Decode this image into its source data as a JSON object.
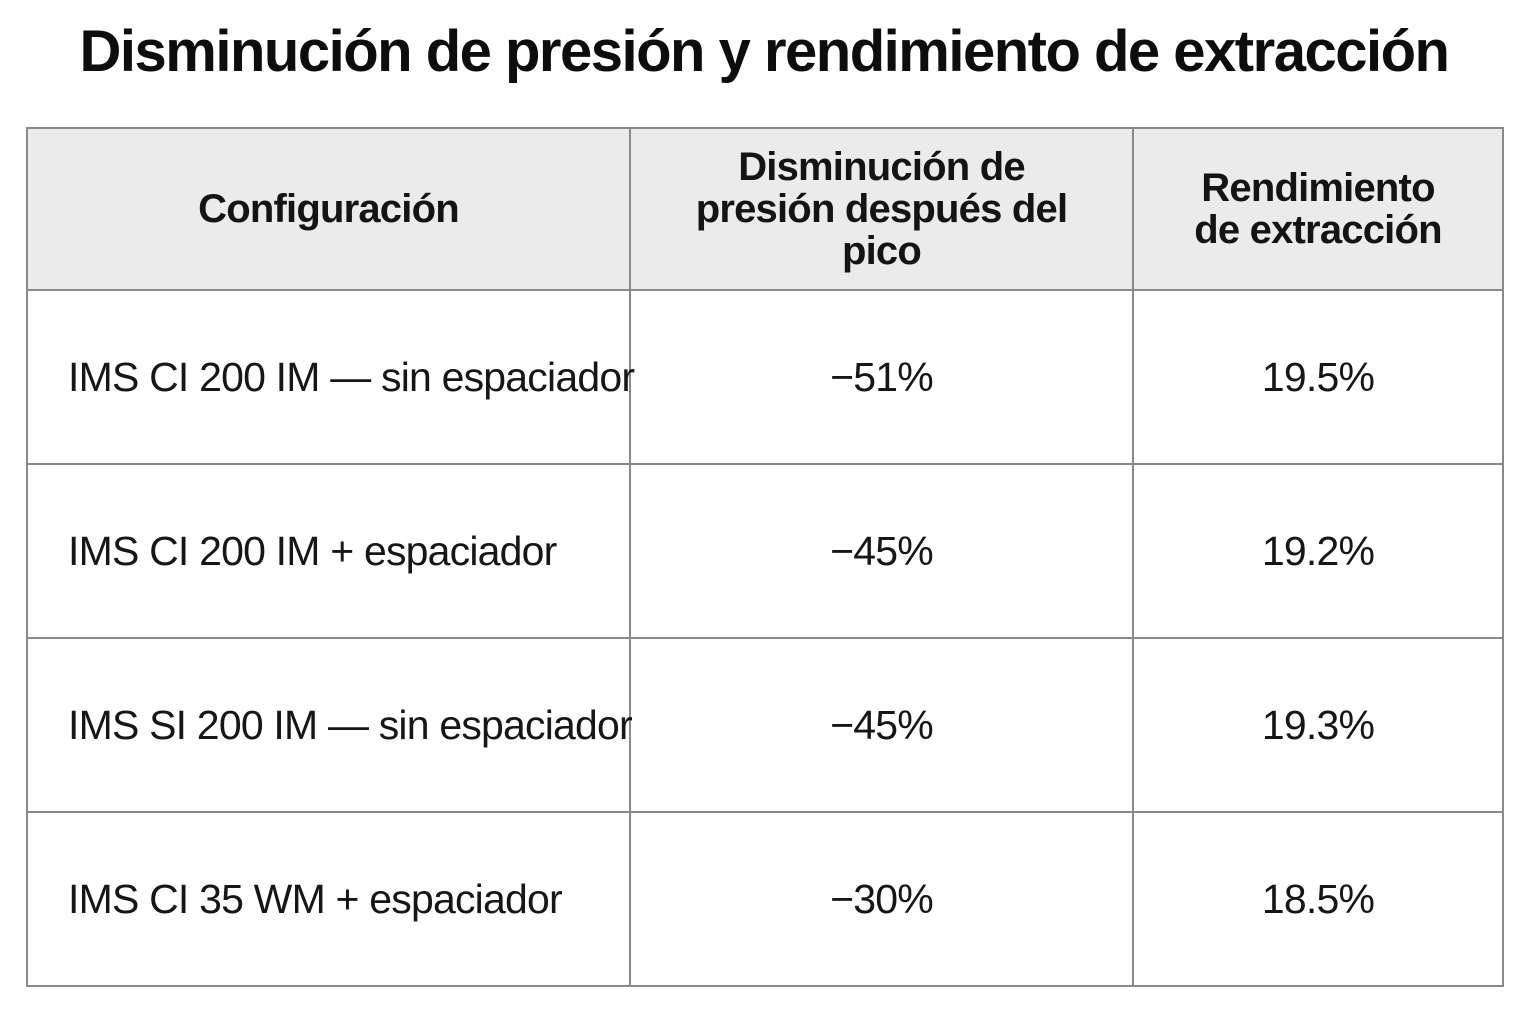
{
  "title": "Disminución de presión y rendimiento de extracción",
  "table": {
    "headers": [
      "Configuración",
      "Disminución de presión después del pico",
      "Rendimiento de extracción"
    ],
    "rows": [
      {
        "config": "IMS CI 200 IM — sin espaciador",
        "pressure_drop": "−51%",
        "yield": "19.5%"
      },
      {
        "config": "IMS CI 200 IM + espaciador",
        "pressure_drop": "−45%",
        "yield": "19.2%"
      },
      {
        "config": "IMS SI 200 IM — sin espaciador",
        "pressure_drop": "−45%",
        "yield": "19.3%"
      },
      {
        "config": "IMS CI 35 WM + espaciador",
        "pressure_drop": "−30%",
        "yield": "18.5%"
      }
    ]
  }
}
